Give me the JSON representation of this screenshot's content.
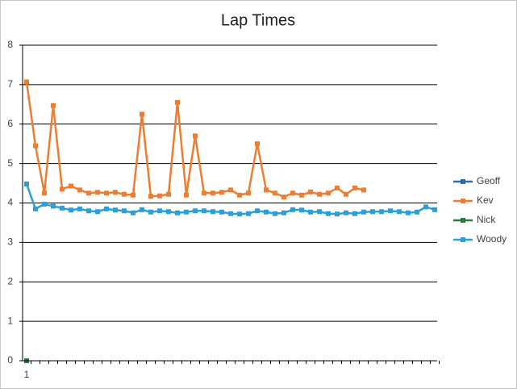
{
  "chart_data": {
    "type": "line",
    "title": "Lap Times",
    "categories": [
      "1",
      null,
      null,
      null,
      null,
      null,
      null,
      null,
      null,
      null,
      null,
      null,
      null,
      null,
      null,
      null,
      null,
      null,
      null,
      null,
      null,
      null,
      null,
      null,
      null,
      null,
      null,
      null,
      null,
      null,
      null,
      null,
      null,
      null,
      null,
      null,
      null,
      null,
      null,
      null,
      null,
      null,
      null,
      null,
      null,
      null,
      null
    ],
    "series": [
      {
        "name": "Geoff",
        "color": "#2e6da4",
        "values": [
          0,
          null,
          null,
          null,
          null,
          null,
          null,
          null,
          null,
          null,
          null,
          null,
          null,
          null,
          null,
          null,
          null,
          null,
          null,
          null,
          null,
          null,
          null,
          null,
          null,
          null,
          null,
          null,
          null,
          null,
          null,
          null,
          null,
          null,
          null,
          null,
          null,
          null,
          null,
          null,
          null,
          null,
          null,
          null,
          null,
          null,
          null
        ]
      },
      {
        "name": "Kev",
        "color": "#ed7d31",
        "values": [
          7.07,
          5.45,
          4.25,
          6.47,
          4.35,
          4.43,
          4.33,
          4.25,
          4.27,
          4.25,
          4.27,
          4.22,
          4.2,
          6.25,
          4.17,
          4.18,
          4.22,
          6.55,
          4.2,
          5.7,
          4.25,
          4.25,
          4.27,
          4.33,
          4.2,
          4.25,
          5.5,
          4.33,
          4.25,
          4.15,
          4.25,
          4.2,
          4.28,
          4.22,
          4.25,
          4.38,
          4.22,
          4.38,
          4.33,
          null,
          null,
          null,
          null,
          null,
          null,
          null,
          null
        ]
      },
      {
        "name": "Nick",
        "color": "#2a7a3b",
        "values": [
          0,
          null,
          null,
          null,
          null,
          null,
          null,
          null,
          null,
          null,
          null,
          null,
          null,
          null,
          null,
          null,
          null,
          null,
          null,
          null,
          null,
          null,
          null,
          null,
          null,
          null,
          null,
          null,
          null,
          null,
          null,
          null,
          null,
          null,
          null,
          null,
          null,
          null,
          null,
          null,
          null,
          null,
          null,
          null,
          null,
          null,
          null
        ]
      },
      {
        "name": "Woody",
        "color": "#2a9fd8",
        "values": [
          4.48,
          3.85,
          3.97,
          3.92,
          3.87,
          3.82,
          3.85,
          3.8,
          3.78,
          3.85,
          3.82,
          3.8,
          3.75,
          3.83,
          3.77,
          3.8,
          3.78,
          3.75,
          3.77,
          3.8,
          3.8,
          3.78,
          3.77,
          3.73,
          3.72,
          3.73,
          3.8,
          3.77,
          3.73,
          3.75,
          3.83,
          3.82,
          3.77,
          3.78,
          3.73,
          3.72,
          3.75,
          3.73,
          3.77,
          3.78,
          3.78,
          3.8,
          3.78,
          3.75,
          3.77,
          3.9,
          3.83
        ]
      }
    ],
    "ylim": [
      0,
      8
    ],
    "yticks": [
      0,
      1,
      2,
      3,
      4,
      5,
      6,
      7,
      8
    ],
    "grid": true,
    "legend": "right"
  }
}
